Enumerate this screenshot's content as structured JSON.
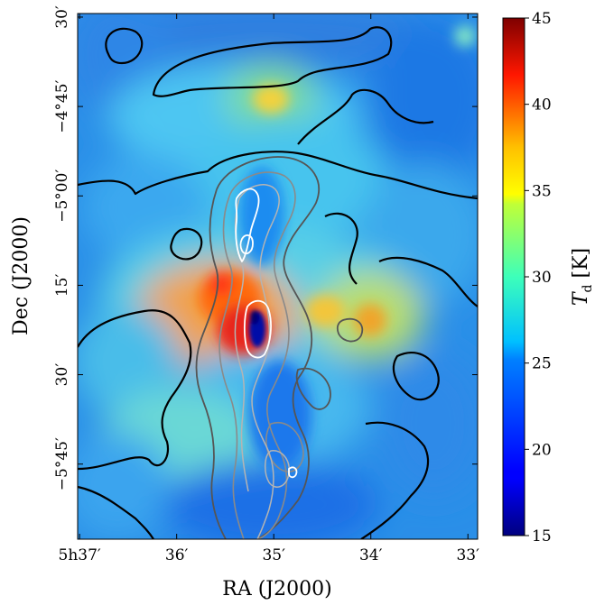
{
  "chart_data": {
    "type": "heatmap",
    "title": "",
    "xlabel": "RA (J2000)",
    "ylabel": "Dec (J2000)",
    "x_ticks": [
      "5h37′",
      "36′",
      "35′",
      "34′",
      "33′"
    ],
    "y_ticks": [
      "30′",
      "−4°45′",
      "−5°00′",
      "15′",
      "30′",
      "−5°45′"
    ],
    "x_tick_values_ra_min": [
      37,
      36,
      35,
      34,
      33
    ],
    "y_tick_values_dec_deg": [
      -4.5,
      -4.75,
      -5.0,
      -5.25,
      -5.5,
      -5.75
    ],
    "xlim_ra_min": [
      37.02,
      32.9
    ],
    "ylim_dec_deg": [
      -5.96,
      -4.49
    ],
    "colorbar": {
      "label": "Tᵈ [K]",
      "label_main": "T",
      "label_sub": "d",
      "label_unit": " [K]",
      "range": [
        15,
        45
      ],
      "ticks": [
        "45",
        "40",
        "35",
        "30",
        "25",
        "20",
        "15"
      ],
      "tick_values": [
        45,
        40,
        35,
        30,
        25,
        20,
        15
      ],
      "colormap": "jet"
    },
    "features": [
      {
        "name": "cold-core",
        "ra_min": 35.2,
        "dec_deg": -5.37,
        "t_k": 15
      },
      {
        "name": "hot-region",
        "ra_min": 35.6,
        "dec_deg": -5.38,
        "t_k": 42
      },
      {
        "name": "warm-knot",
        "ra_min": 35.7,
        "dec_deg": -5.25,
        "t_k": 39
      },
      {
        "name": "warm-blob-north",
        "ra_min": 35.0,
        "dec_deg": -4.72,
        "t_k": 34
      }
    ],
    "contours": {
      "colors": [
        "#000000",
        "#555555",
        "#8a8a8a",
        "#b4b4b4",
        "#ffffff"
      ]
    }
  }
}
